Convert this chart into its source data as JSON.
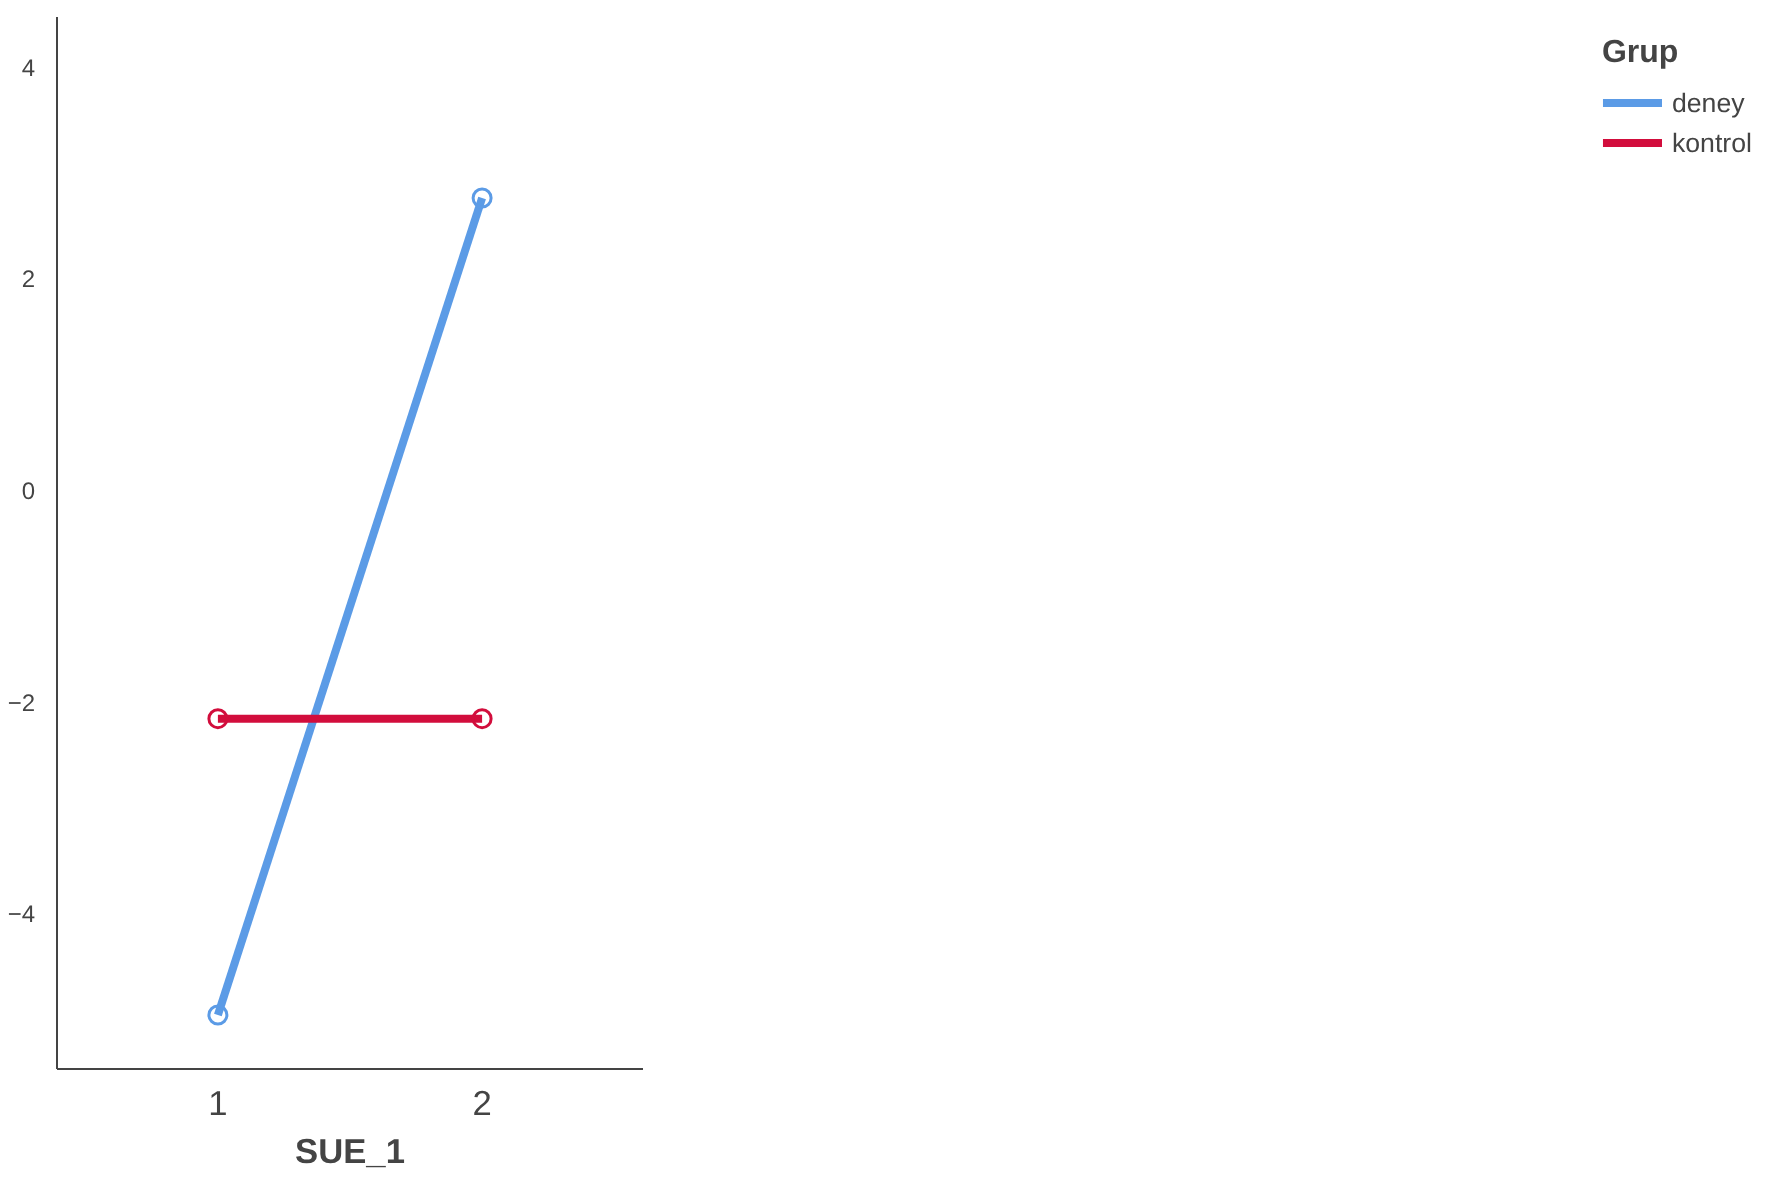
{
  "chart_data": {
    "type": "line",
    "xlabel": "SUE_1",
    "legend_title": "Grup",
    "categories": [
      "1",
      "2"
    ],
    "series": [
      {
        "name": "deney",
        "color": "#5b9be6",
        "values": [
          -4.96,
          2.76
        ]
      },
      {
        "name": "kontrol",
        "color": "#d20d3c",
        "values": [
          -2.16,
          -2.16
        ]
      }
    ],
    "ylim": [
      -5.47,
      4.47
    ],
    "yticks": [
      -4,
      -2,
      0,
      2,
      4
    ],
    "grid": false,
    "legend": "top right",
    "marker": "circle",
    "line_style": "solid"
  }
}
